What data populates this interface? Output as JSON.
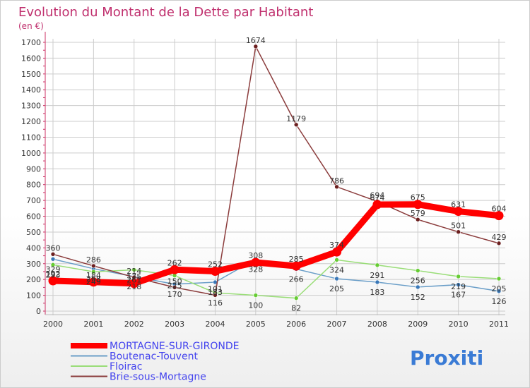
{
  "chart_data": {
    "type": "line",
    "title": "Evolution du Montant de la Dette par Habitant",
    "subtitle": "(en €)",
    "xlabel": "",
    "ylabel": "",
    "ylim": [
      0,
      1750
    ],
    "yticks": [
      0,
      100,
      200,
      300,
      400,
      500,
      600,
      700,
      800,
      900,
      1000,
      1100,
      1200,
      1300,
      1400,
      1500,
      1600,
      1700
    ],
    "categories": [
      "2000",
      "2001",
      "2002",
      "2003",
      "2004",
      "2005",
      "2006",
      "2007",
      "2008",
      "2009",
      "2010",
      "2011"
    ],
    "grid": true,
    "series": [
      {
        "name": "Boutenac-Touvent",
        "color": "#6a9ec8",
        "marker": "#3a78b8",
        "values": [
          329,
          268,
          218,
          170,
          183,
          328,
          266,
          205,
          183,
          152,
          167,
          126
        ],
        "labels": [
          "329",
          "268",
          "218",
          "170",
          "183",
          "328",
          "266",
          "205",
          "183",
          "152",
          "167",
          "126"
        ]
      },
      {
        "name": "Floirac",
        "color": "#99dd77",
        "marker": "#66cc33",
        "values": [
          293,
          249,
          261,
          225,
          116,
          100,
          82,
          324,
          291,
          256,
          219,
          205
        ],
        "labels": [
          "293",
          "249",
          "261",
          "225",
          "116",
          "100",
          "82",
          "324",
          "291",
          "256",
          "219",
          "205"
        ]
      },
      {
        "name": "Brie-sous-Mortagne",
        "color": "#8b3c3c",
        "marker": "#6b1f1f",
        "values": [
          360,
          286,
          214,
          150,
          101,
          1674,
          1179,
          786,
          694,
          579,
          501,
          429
        ],
        "labels": [
          "360",
          "286",
          "214",
          "150",
          "101",
          "1674",
          "1179",
          "786",
          "694",
          "579",
          "501",
          "429"
        ]
      },
      {
        "name": "MORTAGNE-SUR-GIRONDE",
        "color": "#ff0000",
        "marker": "#ff0000",
        "values": [
          192,
          184,
          175,
          262,
          252,
          308,
          285,
          374,
          674,
          675,
          631,
          604
        ],
        "labels": [
          "192",
          "184",
          "175",
          "262",
          "252",
          "308",
          "285",
          "374",
          "674",
          "675",
          "631",
          "604"
        ]
      }
    ],
    "legend": [
      "MORTAGNE-SUR-GIRONDE",
      "Boutenac-Touvent",
      "Floirac",
      "Brie-sous-Mortagne"
    ]
  },
  "brand": {
    "logo_text": "Proxiti"
  },
  "colors": {
    "title": "#c0306e",
    "legend_text": "#4444ee",
    "axis": "#cc3366",
    "grid": "#cccccc"
  }
}
